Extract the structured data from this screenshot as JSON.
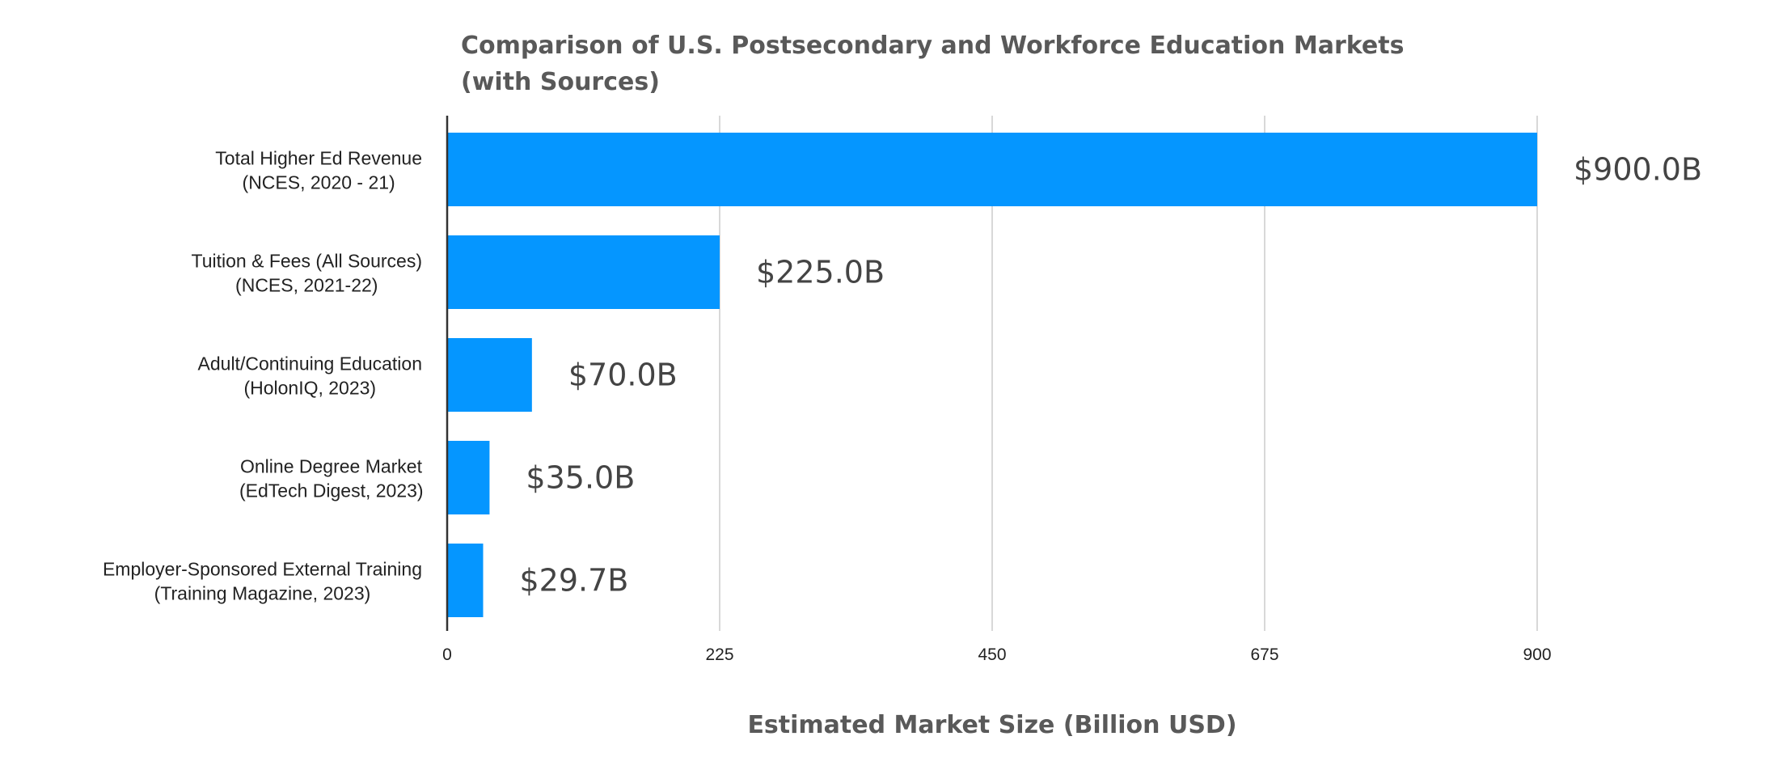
{
  "chart_data": {
    "type": "bar",
    "orientation": "horizontal",
    "title": [
      "Comparison of U.S. Postsecondary and Workforce Education Markets",
      "(with Sources)"
    ],
    "categories": [
      [
        "Total Higher Ed Revenue",
        "(NCES, 2020 - 21)"
      ],
      [
        "Tuition & Fees (All Sources)",
        "(NCES, 2021-22)"
      ],
      [
        "Adult/Continuing Education",
        "(HolonIQ, 2023)"
      ],
      [
        "Online Degree Market",
        "(EdTech Digest, 2023)"
      ],
      [
        "Employer-Sponsored External Training",
        "(Training Magazine, 2023)"
      ]
    ],
    "values": [
      900,
      225,
      70,
      35,
      29.7
    ],
    "data_labels": [
      "$900.0B",
      "$225.0B",
      "$70.0B",
      "$35.0B",
      "$29.7B"
    ],
    "xlabel": "Estimated Market Size (Billion USD)",
    "xlim": [
      0,
      900
    ],
    "xticks": [
      0,
      225,
      450,
      675,
      900
    ],
    "grid": "vertical",
    "legend": "none",
    "bar_color": "#0596FF",
    "grid_color": "#cccccc",
    "axis_color": "#333333"
  }
}
